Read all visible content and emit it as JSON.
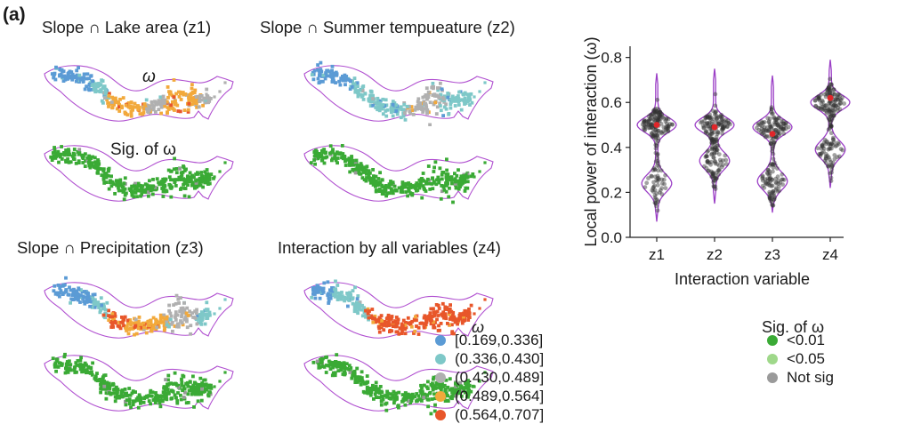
{
  "panel_label": "(a)",
  "maps": {
    "z1_title": "Slope ∩ Lake area (z1)",
    "z2_title": "Slope ∩ Summer tempueature (z2)",
    "z3_title": "Slope ∩ Precipitation (z3)",
    "z4_title": "Interaction by all variables (z4)",
    "omega_label": "ω",
    "sig_label": "Sig. of ω",
    "region_outline_color": "#b04fd0",
    "row_top_dominant_classes": {
      "z1": [
        1,
        1,
        2,
        4,
        4,
        3,
        4,
        4,
        3
      ],
      "z2": [
        1,
        1,
        2,
        2,
        2,
        3,
        3,
        2,
        2
      ],
      "z3": [
        1,
        1,
        2,
        5,
        4,
        4,
        3,
        3,
        2
      ],
      "z4": [
        1,
        2,
        2,
        5,
        5,
        5,
        5,
        5,
        5
      ]
    },
    "sig_class": "<0.01"
  },
  "omega_legend": {
    "title": "ω",
    "items": [
      {
        "label": "[0.169,0.336]",
        "color": "#5b9bd5"
      },
      {
        "label": "(0.336,0.430]",
        "color": "#7ec8c8"
      },
      {
        "label": "(0.430,0.489]",
        "color": "#b0b0b0"
      },
      {
        "label": "(0.489,0.564]",
        "color": "#f2a93b"
      },
      {
        "label": "(0.564,0.707]",
        "color": "#e8562a"
      }
    ]
  },
  "sig_legend": {
    "title": "Sig. of ω",
    "items": [
      {
        "label": "<0.01",
        "color": "#3aaa35"
      },
      {
        "label": "<0.05",
        "color": "#9fd88a"
      },
      {
        "label": "Not sig",
        "color": "#9a9a9a"
      }
    ]
  },
  "chart_data": {
    "type": "violin",
    "title": "",
    "xlabel": "Interaction variable",
    "ylabel": "Local power of interaction (ω)",
    "categories": [
      "z1",
      "z2",
      "z3",
      "z4"
    ],
    "ylim": [
      0.0,
      0.85
    ],
    "yticks": [
      0.0,
      0.2,
      0.4,
      0.6,
      0.8
    ],
    "ytick_labels": [
      "0.0",
      "0.2",
      "0.4",
      "0.6",
      "0.8"
    ],
    "means": [
      0.5,
      0.49,
      0.46,
      0.62
    ],
    "ranges": [
      [
        0.07,
        0.73
      ],
      [
        0.15,
        0.75
      ],
      [
        0.11,
        0.72
      ],
      [
        0.22,
        0.79
      ]
    ],
    "modes": [
      [
        0.5,
        0.24
      ],
      [
        0.5,
        0.34
      ],
      [
        0.49,
        0.25
      ],
      [
        0.6,
        0.39
      ]
    ],
    "violin_color": "#9b3fc6",
    "point_color": "#303030",
    "mean_color": "#e0262a",
    "grid": false,
    "legend": "none"
  }
}
